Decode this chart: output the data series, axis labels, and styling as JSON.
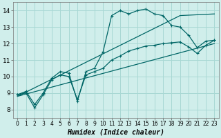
{
  "title": "",
  "xlabel": "Humidex (Indice chaleur)",
  "bg_color": "#d0eeeb",
  "grid_color": "#a8d8d4",
  "line_color": "#006666",
  "xlim": [
    -0.5,
    23.5
  ],
  "ylim": [
    7.5,
    14.5
  ],
  "xticks": [
    0,
    1,
    2,
    3,
    4,
    5,
    6,
    7,
    8,
    9,
    10,
    11,
    12,
    13,
    14,
    15,
    16,
    17,
    18,
    19,
    20,
    21,
    22,
    23
  ],
  "yticks": [
    8,
    9,
    10,
    11,
    12,
    13,
    14
  ],
  "series1_x": [
    0,
    1,
    2,
    3,
    4,
    5,
    6,
    7,
    8,
    9,
    10,
    11,
    12,
    13,
    14,
    15,
    16,
    17,
    18,
    19,
    20,
    21,
    22,
    23
  ],
  "series1_y": [
    8.9,
    9.1,
    8.3,
    9.0,
    9.9,
    10.3,
    10.2,
    8.5,
    10.3,
    10.5,
    11.5,
    13.7,
    14.0,
    13.8,
    14.0,
    14.1,
    13.8,
    13.7,
    13.1,
    13.0,
    12.5,
    11.75,
    12.15,
    12.2
  ],
  "series2_x": [
    0,
    1,
    2,
    3,
    4,
    5,
    6,
    7,
    8,
    9,
    10,
    11,
    12,
    13,
    14,
    15,
    16,
    17,
    18,
    19,
    20,
    21,
    22,
    23
  ],
  "series2_y": [
    8.9,
    9.0,
    8.1,
    8.9,
    9.8,
    10.1,
    10.0,
    8.6,
    10.1,
    10.3,
    10.5,
    11.0,
    11.25,
    11.55,
    11.7,
    11.85,
    11.9,
    12.0,
    12.05,
    12.1,
    11.8,
    11.4,
    11.9,
    12.2
  ],
  "trend1_x": [
    0,
    19,
    23
  ],
  "trend1_y": [
    8.8,
    13.7,
    13.8
  ],
  "trend2_x": [
    0,
    23
  ],
  "trend2_y": [
    8.8,
    12.0
  ]
}
